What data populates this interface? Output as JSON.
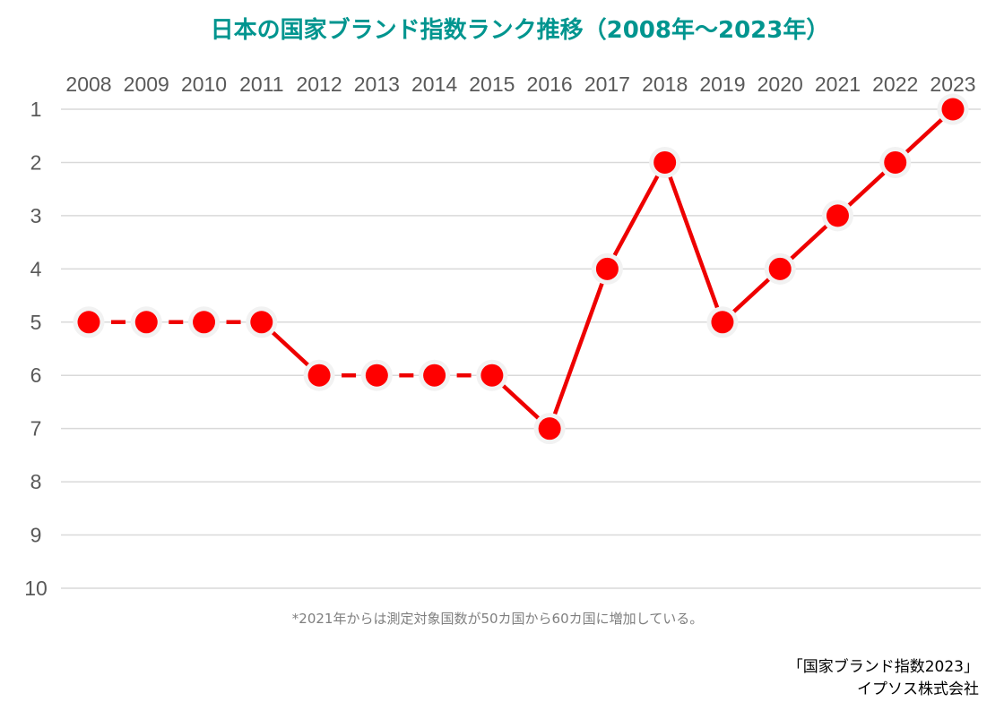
{
  "chart_data": {
    "type": "line",
    "title": "日本の国家ブランド指数ランク推移（2008年～2023年）",
    "x": [
      "2008",
      "2009",
      "2010",
      "2011",
      "2012",
      "2013",
      "2014",
      "2015",
      "2016",
      "2017",
      "2018",
      "2019",
      "2020",
      "2021",
      "2022",
      "2023"
    ],
    "series": [
      {
        "values": [
          5,
          5,
          5,
          5,
          6,
          6,
          6,
          6,
          7,
          4,
          2,
          5,
          4,
          3,
          2,
          1
        ],
        "dashed_segments": [
          [
            0,
            1
          ],
          [
            1,
            2
          ],
          [
            2,
            3
          ],
          [
            4,
            5
          ],
          [
            5,
            6
          ],
          [
            6,
            7
          ]
        ]
      }
    ],
    "y_ticks": [
      "1",
      "2",
      "3",
      "4",
      "5",
      "6",
      "7",
      "8",
      "9",
      "10"
    ],
    "ylim": [
      1,
      10
    ],
    "y_inverted": true,
    "x_axis_position": "top",
    "grid": true,
    "legend": "none",
    "footnote": "*2021年からは測定対象国数が50カ国から60カ国に増加している。",
    "source_line1": "「国家ブランド指数2023」",
    "source_line2": "イプソス株式会社",
    "colors": {
      "line": "#EE0000",
      "marker_fill": "#FF0000",
      "marker_halo": "#F2F2F2",
      "title": "#00958F",
      "grid": "#D9D9D9"
    }
  }
}
